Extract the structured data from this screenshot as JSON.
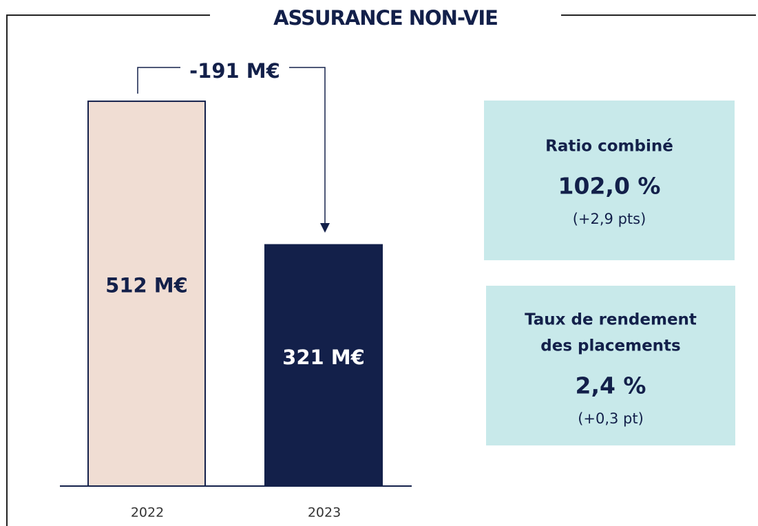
{
  "chart_data": {
    "type": "bar",
    "title": "ASSURANCE NON-VIE",
    "categories": [
      "2022",
      "2023"
    ],
    "values": [
      512,
      321
    ],
    "value_labels": [
      "512 M€",
      "321 M€"
    ],
    "colors": [
      "#f0ddd3",
      "#13204a"
    ],
    "label_colors": [
      "#13204a",
      "#ffffff"
    ],
    "ylim": [
      0,
      600
    ],
    "annotation": "-191 M€"
  },
  "kpis": [
    {
      "title_lines": [
        "Ratio combiné"
      ],
      "value": "102,0 %",
      "change": "(+2,9 pts)"
    },
    {
      "title_lines": [
        "Taux de rendement",
        "des placements"
      ],
      "value": "2,4 %",
      "change": "(+0,3 pt)"
    }
  ]
}
